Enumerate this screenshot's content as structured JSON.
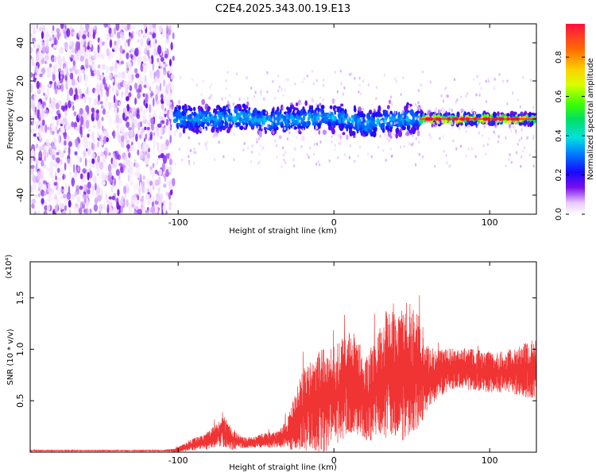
{
  "figure_title": "C2E4.2025.343.00.19.E13",
  "chart_data": [
    {
      "type": "heatmap",
      "description_panel": "spectrogram",
      "xlabel": "Height of straight line (km)",
      "ylabel": "Frequency (Hz)",
      "xlim": [
        -195,
        130
      ],
      "ylim": [
        -50,
        50
      ],
      "xticks": [
        -100,
        0,
        100
      ],
      "xtick_labels": [
        "-100",
        "0",
        "100"
      ],
      "yticks": [
        -40,
        -20,
        0,
        20,
        40
      ],
      "ytick_labels": [
        "-40",
        "-20",
        "0",
        "20",
        "40"
      ],
      "noise_region_x": [
        -195,
        -103
      ],
      "signal_center_hz": [
        {
          "x": -103,
          "y": 0
        },
        {
          "x": -80,
          "y": 0
        },
        {
          "x": -60,
          "y": 1
        },
        {
          "x": -40,
          "y": -1
        },
        {
          "x": -20,
          "y": 0
        },
        {
          "x": 0,
          "y": 1
        },
        {
          "x": 10,
          "y": 0
        },
        {
          "x": 20,
          "y": -3
        },
        {
          "x": 30,
          "y": -1
        },
        {
          "x": 45,
          "y": 0
        },
        {
          "x": 60,
          "y": 0
        },
        {
          "x": 80,
          "y": 0
        },
        {
          "x": 100,
          "y": 0
        },
        {
          "x": 130,
          "y": 0
        }
      ],
      "colorbar": {
        "label": "Normalized spectral amplitude",
        "range": [
          0,
          0.97
        ],
        "ticks": [
          0.0,
          0.2,
          0.4,
          0.6,
          0.8
        ],
        "tick_labels": [
          "0.0",
          "0.2",
          "0.4",
          "0.6",
          "0.8"
        ]
      }
    },
    {
      "type": "line",
      "xlabel": "Height of straight line (km)",
      "ylabel": "SNR (10 * v/v)",
      "y_multiplier": "(x10⁴)",
      "xlim": [
        -195,
        130
      ],
      "ylim": [
        0,
        1.85
      ],
      "xticks": [
        -100,
        0,
        100
      ],
      "xtick_labels": [
        "-100",
        "0",
        "100"
      ],
      "yticks": [
        0.5,
        1.0,
        1.5
      ],
      "ytick_labels": [
        "0.5",
        "1.0",
        "1.5"
      ],
      "color": "#f03434",
      "series": [
        {
          "name": "SNR",
          "envelope_x": [
            -195,
            -150,
            -110,
            -102,
            -95,
            -90,
            -85,
            -80,
            -75,
            -70,
            -65,
            -60,
            -55,
            -50,
            -45,
            -40,
            -35,
            -30,
            -25,
            -20,
            -15,
            -10,
            -5,
            0,
            5,
            10,
            15,
            20,
            25,
            30,
            35,
            40,
            45,
            50,
            55,
            60,
            65,
            70,
            80,
            90,
            100,
            110,
            120,
            130
          ],
          "envelope_base": [
            0.015,
            0.015,
            0.015,
            0.02,
            0.05,
            0.08,
            0.09,
            0.12,
            0.17,
            0.2,
            0.12,
            0.1,
            0.09,
            0.1,
            0.12,
            0.12,
            0.13,
            0.18,
            0.28,
            0.42,
            0.45,
            0.5,
            0.5,
            0.55,
            0.6,
            0.68,
            0.65,
            0.5,
            0.58,
            0.7,
            0.75,
            0.75,
            0.8,
            0.78,
            0.8,
            0.7,
            0.75,
            0.78,
            0.82,
            0.8,
            0.78,
            0.78,
            0.8,
            0.8
          ],
          "envelope_amp": [
            0.005,
            0.005,
            0.005,
            0.02,
            0.04,
            0.06,
            0.07,
            0.09,
            0.12,
            0.15,
            0.1,
            0.06,
            0.05,
            0.06,
            0.07,
            0.08,
            0.08,
            0.15,
            0.28,
            0.4,
            0.45,
            0.5,
            0.5,
            0.48,
            0.5,
            0.52,
            0.48,
            0.4,
            0.48,
            0.55,
            0.65,
            0.6,
            0.7,
            0.65,
            0.55,
            0.35,
            0.25,
            0.22,
            0.2,
            0.2,
            0.2,
            0.2,
            0.25,
            0.3
          ]
        }
      ]
    }
  ]
}
